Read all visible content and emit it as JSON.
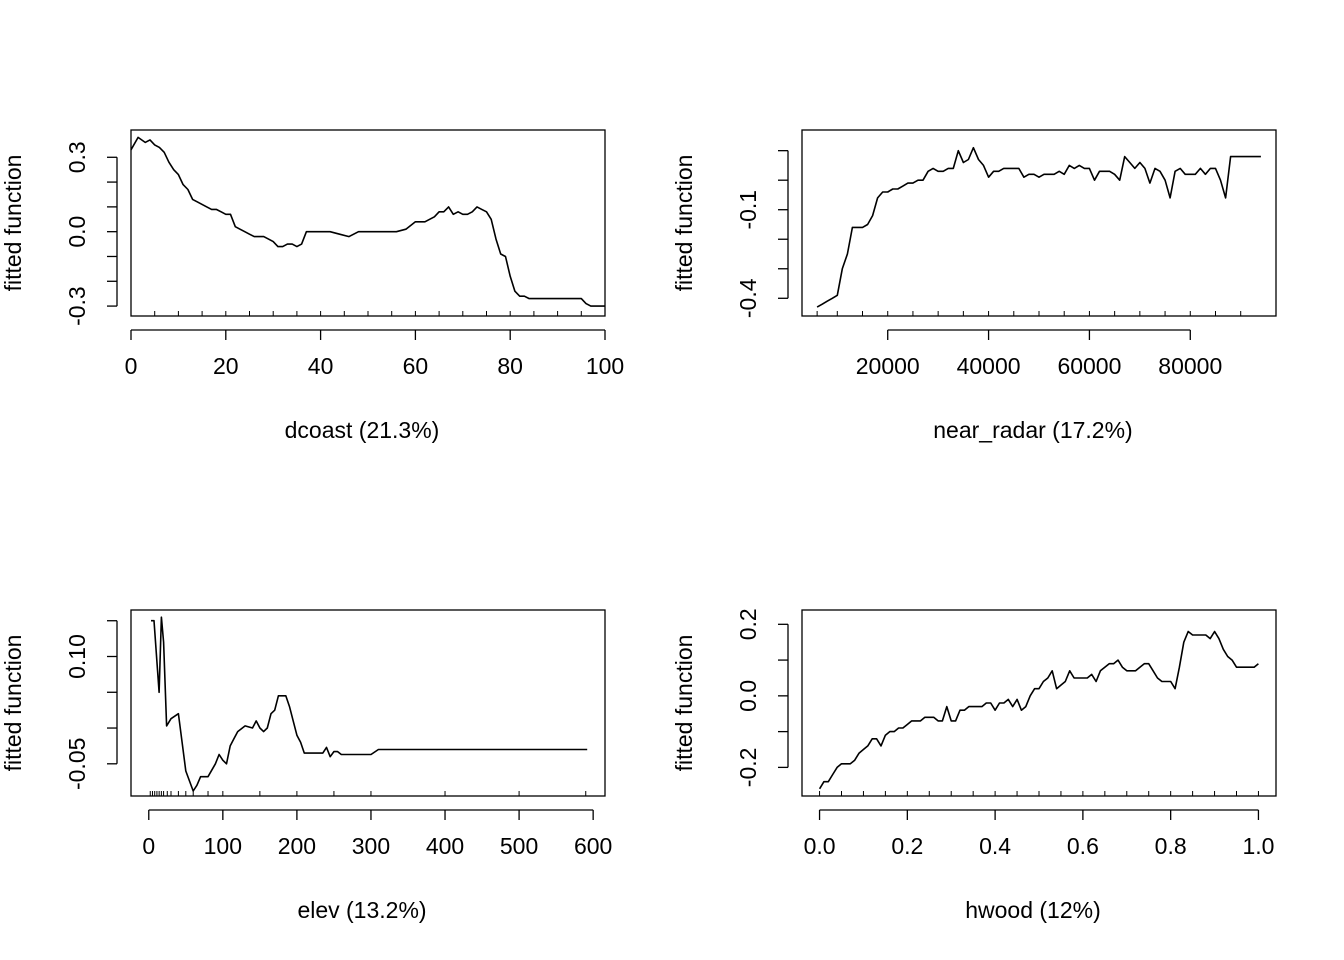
{
  "chart_data": [
    {
      "type": "line",
      "xlabel": "dcoast  (21.3%)",
      "ylabel": "fitted function",
      "xlim": [
        0,
        100
      ],
      "ylim": [
        -0.34,
        0.41
      ],
      "xticks": [
        0,
        20,
        40,
        60,
        80,
        100
      ],
      "xtick_labels": [
        "0",
        "20",
        "40",
        "60",
        "80",
        "100"
      ],
      "yticks": [
        -0.3,
        0.0,
        0.3
      ],
      "ytick_labels": [
        "-0.3",
        "0.0",
        "0.3"
      ],
      "yminor": [
        -0.2,
        -0.1,
        0.1,
        0.2
      ],
      "rug": [
        0,
        5,
        10,
        15,
        20,
        25,
        30,
        35,
        40,
        45,
        50,
        55,
        60,
        65,
        70,
        75,
        80,
        85,
        90,
        95,
        100
      ],
      "series": [
        {
          "x": [
            0,
            1.5,
            3,
            4,
            5,
            6,
            7,
            8,
            9,
            10,
            11,
            12,
            13,
            14,
            15,
            16,
            17,
            18,
            19,
            20,
            21,
            22,
            23,
            24,
            25,
            26,
            27,
            28,
            29,
            30,
            31,
            32,
            33,
            34,
            35,
            36,
            37,
            38,
            39,
            40,
            42,
            44,
            46,
            48,
            50,
            52,
            54,
            56,
            58,
            60,
            62,
            64,
            65,
            66,
            67,
            68,
            69,
            70,
            71,
            72,
            73,
            74,
            75,
            76,
            77,
            78,
            79,
            80,
            81,
            82,
            83,
            84,
            85,
            87,
            90,
            94,
            95,
            96,
            97,
            98,
            100
          ],
          "y": [
            0.33,
            0.38,
            0.36,
            0.37,
            0.35,
            0.34,
            0.32,
            0.28,
            0.25,
            0.23,
            0.19,
            0.17,
            0.13,
            0.12,
            0.11,
            0.1,
            0.09,
            0.09,
            0.08,
            0.07,
            0.07,
            0.02,
            0.01,
            0.0,
            -0.01,
            -0.02,
            -0.02,
            -0.02,
            -0.03,
            -0.04,
            -0.06,
            -0.06,
            -0.05,
            -0.05,
            -0.06,
            -0.05,
            0.0,
            0.0,
            0.0,
            0.0,
            0.0,
            -0.01,
            -0.02,
            0.0,
            0.0,
            0.0,
            0.0,
            0.0,
            0.01,
            0.04,
            0.04,
            0.06,
            0.08,
            0.08,
            0.1,
            0.07,
            0.08,
            0.07,
            0.07,
            0.08,
            0.1,
            0.09,
            0.08,
            0.05,
            -0.03,
            -0.09,
            -0.1,
            -0.18,
            -0.24,
            -0.26,
            -0.26,
            -0.27,
            -0.27,
            -0.27,
            -0.27,
            -0.27,
            -0.27,
            -0.29,
            -0.3,
            -0.3,
            -0.3
          ]
        }
      ]
    },
    {
      "type": "line",
      "xlabel": "near_radar  (17.2%)",
      "ylabel": "fitted function",
      "xlim": [
        3000,
        97000
      ],
      "ylim": [
        -0.46,
        0.17
      ],
      "xticks": [
        20000,
        40000,
        60000,
        80000
      ],
      "xtick_labels": [
        "20000",
        "40000",
        "60000",
        "80000"
      ],
      "yticks": [
        -0.4,
        -0.1
      ],
      "ytick_labels": [
        "-0.4",
        "-0.1"
      ],
      "yminor": [
        -0.3,
        -0.2,
        0.0,
        0.1
      ],
      "rug": [
        6000,
        10000,
        15000,
        20000,
        25000,
        30000,
        35000,
        40000,
        45000,
        50000,
        55000,
        60000,
        65000,
        70000,
        75000,
        80000,
        85000,
        90000
      ],
      "series": [
        {
          "x": [
            6000,
            7000,
            8000,
            9000,
            10000,
            11000,
            12000,
            13000,
            14000,
            15000,
            16000,
            17000,
            18000,
            19000,
            20000,
            21000,
            22000,
            23000,
            24000,
            25000,
            26000,
            27000,
            28000,
            29000,
            30000,
            31000,
            32000,
            33000,
            34000,
            35000,
            36000,
            37000,
            38000,
            39000,
            40000,
            41000,
            42000,
            43000,
            44000,
            45000,
            46000,
            47000,
            48000,
            49000,
            50000,
            51000,
            52000,
            53000,
            54000,
            55000,
            56000,
            57000,
            58000,
            59000,
            60000,
            61000,
            62000,
            63000,
            64000,
            65000,
            66000,
            67000,
            68000,
            69000,
            70000,
            71000,
            72000,
            73000,
            74000,
            75000,
            76000,
            77000,
            78000,
            79000,
            80000,
            81000,
            82000,
            83000,
            84000,
            85000,
            86000,
            87000,
            88000,
            89000,
            90000,
            91000,
            92000,
            93000,
            94000
          ],
          "y": [
            -0.43,
            -0.42,
            -0.41,
            -0.4,
            -0.39,
            -0.3,
            -0.25,
            -0.16,
            -0.16,
            -0.16,
            -0.15,
            -0.12,
            -0.06,
            -0.04,
            -0.04,
            -0.03,
            -0.03,
            -0.02,
            -0.01,
            -0.01,
            0.0,
            0.0,
            0.03,
            0.04,
            0.03,
            0.03,
            0.04,
            0.04,
            0.1,
            0.06,
            0.07,
            0.11,
            0.07,
            0.05,
            0.01,
            0.03,
            0.03,
            0.04,
            0.04,
            0.04,
            0.04,
            0.01,
            0.02,
            0.02,
            0.01,
            0.02,
            0.02,
            0.02,
            0.03,
            0.02,
            0.05,
            0.04,
            0.05,
            0.04,
            0.04,
            0.0,
            0.03,
            0.03,
            0.03,
            0.02,
            0.0,
            0.08,
            0.06,
            0.04,
            0.06,
            0.04,
            -0.01,
            0.04,
            0.03,
            0.0,
            -0.06,
            0.03,
            0.04,
            0.02,
            0.02,
            0.02,
            0.04,
            0.02,
            0.04,
            0.04,
            0.0,
            -0.06,
            0.08,
            0.08,
            0.08,
            0.08,
            0.08,
            0.08,
            0.08
          ]
        }
      ]
    },
    {
      "type": "line",
      "xlabel": "elev  (13.2%)",
      "ylabel": "fitted function",
      "xlim": [
        -24,
        616
      ],
      "ylim": [
        -0.095,
        0.165
      ],
      "xticks": [
        0,
        100,
        200,
        300,
        400,
        500,
        600
      ],
      "xtick_labels": [
        "0",
        "100",
        "200",
        "300",
        "400",
        "500",
        "600"
      ],
      "yticks": [
        -0.05,
        0.1
      ],
      "ytick_labels": [
        "-0.05",
        "0.10"
      ],
      "yminor": [
        0.0,
        0.05,
        0.15
      ],
      "rug": [
        2,
        5,
        8,
        11,
        14,
        17,
        20,
        25,
        30,
        40,
        50,
        60,
        80,
        100,
        150,
        200,
        250,
        300,
        400,
        500,
        590
      ],
      "series": [
        {
          "x": [
            3,
            7,
            14,
            17,
            20,
            24,
            30,
            40,
            45,
            50,
            60,
            65,
            70,
            75,
            80,
            90,
            95,
            100,
            105,
            110,
            115,
            120,
            130,
            140,
            145,
            150,
            155,
            160,
            165,
            170,
            175,
            180,
            185,
            190,
            195,
            200,
            205,
            210,
            230,
            235,
            240,
            245,
            250,
            255,
            260,
            270,
            280,
            290,
            300,
            310,
            320,
            400,
            500,
            592
          ],
          "y": [
            0.15,
            0.15,
            0.05,
            0.155,
            0.12,
            0.003,
            0.013,
            0.02,
            -0.02,
            -0.06,
            -0.088,
            -0.08,
            -0.068,
            -0.068,
            -0.068,
            -0.05,
            -0.037,
            -0.045,
            -0.05,
            -0.025,
            -0.015,
            -0.005,
            0.003,
            0.0,
            0.01,
            0.0,
            -0.005,
            0.0,
            0.02,
            0.025,
            0.045,
            0.045,
            0.045,
            0.03,
            0.01,
            -0.01,
            -0.02,
            -0.035,
            -0.035,
            -0.035,
            -0.027,
            -0.04,
            -0.033,
            -0.033,
            -0.037,
            -0.037,
            -0.037,
            -0.037,
            -0.037,
            -0.03,
            -0.03,
            -0.03,
            -0.03,
            -0.03
          ]
        }
      ]
    },
    {
      "type": "line",
      "xlabel": "hwood  (12%)",
      "ylabel": "fitted function",
      "xlim": [
        -0.04,
        1.04
      ],
      "ylim": [
        -0.28,
        0.24
      ],
      "xticks": [
        0.0,
        0.2,
        0.4,
        0.6,
        0.8,
        1.0
      ],
      "xtick_labels": [
        "0.0",
        "0.2",
        "0.4",
        "0.6",
        "0.8",
        "1.0"
      ],
      "yticks": [
        -0.2,
        0.0,
        0.2
      ],
      "ytick_labels": [
        "-0.2",
        "0.0",
        "0.2"
      ],
      "yminor": [
        -0.1,
        0.1
      ],
      "rug": [
        0.0,
        0.05,
        0.1,
        0.15,
        0.2,
        0.25,
        0.3,
        0.35,
        0.4,
        0.45,
        0.5,
        0.55,
        0.6,
        0.65,
        0.7,
        0.75,
        0.8,
        0.85,
        0.9,
        0.95,
        1.0
      ],
      "series": [
        {
          "x": [
            0.0,
            0.01,
            0.02,
            0.03,
            0.04,
            0.05,
            0.06,
            0.07,
            0.08,
            0.09,
            0.1,
            0.11,
            0.12,
            0.13,
            0.14,
            0.15,
            0.16,
            0.17,
            0.18,
            0.19,
            0.2,
            0.21,
            0.22,
            0.23,
            0.24,
            0.25,
            0.26,
            0.27,
            0.28,
            0.29,
            0.3,
            0.31,
            0.32,
            0.33,
            0.34,
            0.35,
            0.36,
            0.37,
            0.38,
            0.39,
            0.4,
            0.41,
            0.42,
            0.43,
            0.44,
            0.45,
            0.46,
            0.47,
            0.48,
            0.49,
            0.5,
            0.51,
            0.52,
            0.53,
            0.54,
            0.55,
            0.56,
            0.57,
            0.58,
            0.59,
            0.6,
            0.61,
            0.62,
            0.63,
            0.64,
            0.65,
            0.66,
            0.67,
            0.68,
            0.69,
            0.7,
            0.71,
            0.72,
            0.73,
            0.74,
            0.75,
            0.76,
            0.77,
            0.78,
            0.79,
            0.8,
            0.81,
            0.82,
            0.83,
            0.84,
            0.85,
            0.86,
            0.87,
            0.88,
            0.89,
            0.9,
            0.91,
            0.92,
            0.93,
            0.94,
            0.95,
            0.96,
            0.97,
            0.98,
            0.99,
            1.0
          ],
          "y": [
            -0.26,
            -0.24,
            -0.24,
            -0.22,
            -0.2,
            -0.19,
            -0.19,
            -0.19,
            -0.18,
            -0.16,
            -0.15,
            -0.14,
            -0.12,
            -0.12,
            -0.14,
            -0.11,
            -0.1,
            -0.1,
            -0.09,
            -0.09,
            -0.08,
            -0.07,
            -0.07,
            -0.07,
            -0.06,
            -0.06,
            -0.06,
            -0.07,
            -0.07,
            -0.03,
            -0.07,
            -0.07,
            -0.04,
            -0.04,
            -0.03,
            -0.03,
            -0.03,
            -0.03,
            -0.02,
            -0.02,
            -0.04,
            -0.02,
            -0.02,
            -0.01,
            -0.03,
            -0.01,
            -0.04,
            -0.03,
            0.0,
            0.02,
            0.02,
            0.04,
            0.05,
            0.07,
            0.02,
            0.03,
            0.04,
            0.07,
            0.05,
            0.05,
            0.05,
            0.05,
            0.06,
            0.04,
            0.07,
            0.08,
            0.09,
            0.09,
            0.1,
            0.08,
            0.07,
            0.07,
            0.07,
            0.08,
            0.09,
            0.09,
            0.07,
            0.05,
            0.04,
            0.04,
            0.04,
            0.02,
            0.08,
            0.15,
            0.18,
            0.17,
            0.17,
            0.17,
            0.17,
            0.16,
            0.18,
            0.16,
            0.13,
            0.11,
            0.1,
            0.08,
            0.08,
            0.08,
            0.08,
            0.08,
            0.09
          ]
        }
      ]
    }
  ]
}
